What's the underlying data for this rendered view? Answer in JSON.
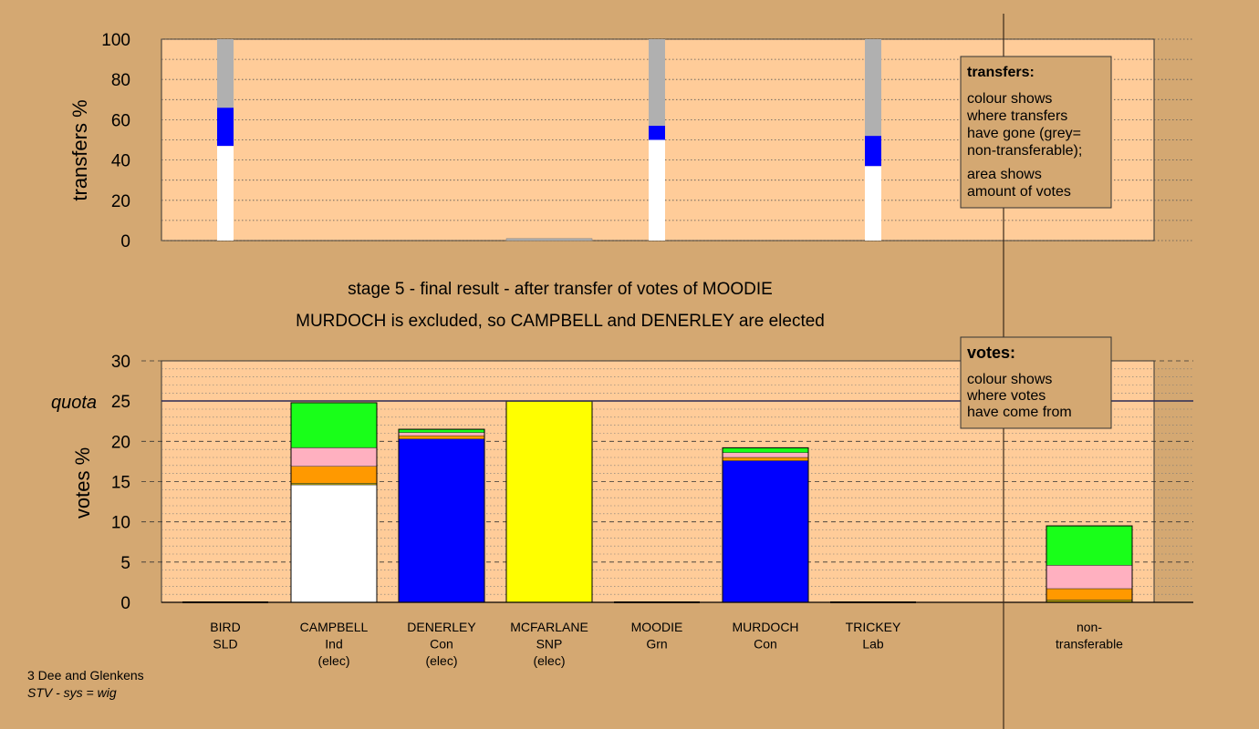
{
  "colors": {
    "background": "#d4a872",
    "plot_bg": "#ffcc99",
    "white": "#ffffff",
    "blue": "#0000ff",
    "yellow": "#ffff00",
    "green": "#19ff19",
    "pink": "#ffb0c0",
    "orange": "#ff9900",
    "olive": "#b5a000",
    "grey": "#b0b0b0"
  },
  "stage_title": "stage 5 - final result - after transfer of votes of MOODIE",
  "stage_subtitle": "MURDOCH is excluded, so CAMPBELL and DENERLEY are elected",
  "footer": {
    "line1": "3 Dee and Glenkens",
    "line2": "STV - sys = wig"
  },
  "transfers_legend": {
    "title": "transfers:",
    "lines": [
      "colour shows",
      "where transfers",
      "have gone (grey=",
      "non-transferable);",
      "area shows",
      "amount of votes"
    ]
  },
  "votes_legend": {
    "title": "votes:",
    "lines": [
      "colour shows",
      "where votes",
      "have come from"
    ]
  },
  "chart_data": [
    {
      "type": "bar",
      "name": "transfers",
      "ylabel": "transfers %",
      "ylim": [
        0,
        100
      ],
      "yticks": [
        0,
        20,
        40,
        60,
        80,
        100
      ],
      "grid": "dotted",
      "categories": [
        "BIRD",
        "CAMPBELL",
        "DENERLEY",
        "MCFARLANE",
        "MOODIE",
        "MURDOCH",
        "TRICKEY"
      ],
      "bars": [
        {
          "category": "BIRD",
          "segments": [
            {
              "color": "white",
              "value": 47
            },
            {
              "color": "blue",
              "value": 19
            },
            {
              "color": "grey",
              "value": 34
            }
          ]
        },
        {
          "category": "MCFARLANE",
          "segments": [
            {
              "color": "grey",
              "value": 1
            }
          ]
        },
        {
          "category": "MOODIE",
          "segments": [
            {
              "color": "white",
              "value": 50
            },
            {
              "color": "blue",
              "value": 7
            },
            {
              "color": "grey",
              "value": 43
            }
          ]
        },
        {
          "category": "TRICKEY",
          "segments": [
            {
              "color": "white",
              "value": 37
            },
            {
              "color": "blue",
              "value": 15
            },
            {
              "color": "grey",
              "value": 48
            }
          ]
        }
      ]
    },
    {
      "type": "bar",
      "name": "votes",
      "ylabel": "votes %",
      "ylim": [
        0,
        30
      ],
      "yticks": [
        0,
        5,
        10,
        15,
        20,
        25,
        30
      ],
      "grid": "dashed",
      "quota": 25,
      "quota_label": "quota",
      "categories": [
        "BIRD",
        "CAMPBELL",
        "DENERLEY",
        "MCFARLANE",
        "MOODIE",
        "MURDOCH",
        "TRICKEY",
        "non-transferable"
      ],
      "tick_labels": [
        [
          "BIRD",
          "SLD"
        ],
        [
          "CAMPBELL",
          "Ind",
          "(elec)"
        ],
        [
          "DENERLEY",
          "Con",
          "(elec)"
        ],
        [
          "MCFARLANE",
          "SNP",
          "(elec)"
        ],
        [
          "MOODIE",
          "Grn"
        ],
        [
          "MURDOCH",
          "Con"
        ],
        [
          "TRICKEY",
          "Lab"
        ],
        [
          "non-",
          "transferable"
        ]
      ],
      "bars": [
        {
          "category": "BIRD",
          "segments": []
        },
        {
          "category": "CAMPBELL",
          "segments": [
            {
              "color": "white",
              "value": 14.6
            },
            {
              "color": "olive",
              "value": 0.2
            },
            {
              "color": "orange",
              "value": 2.1
            },
            {
              "color": "pink",
              "value": 2.3
            },
            {
              "color": "green",
              "value": 5.6
            }
          ]
        },
        {
          "category": "DENERLEY",
          "segments": [
            {
              "color": "blue",
              "value": 20.3
            },
            {
              "color": "orange",
              "value": 0.4
            },
            {
              "color": "pink",
              "value": 0.4
            },
            {
              "color": "green",
              "value": 0.4
            }
          ]
        },
        {
          "category": "MCFARLANE",
          "segments": [
            {
              "color": "yellow",
              "value": 25
            }
          ]
        },
        {
          "category": "MOODIE",
          "segments": []
        },
        {
          "category": "MURDOCH",
          "segments": [
            {
              "color": "blue",
              "value": 17.6
            },
            {
              "color": "orange",
              "value": 0.4
            },
            {
              "color": "pink",
              "value": 0.6
            },
            {
              "color": "green",
              "value": 0.6
            }
          ]
        },
        {
          "category": "TRICKEY",
          "segments": []
        },
        {
          "category": "non-transferable",
          "segments": [
            {
              "color": "olive",
              "value": 0.3
            },
            {
              "color": "orange",
              "value": 1.4
            },
            {
              "color": "pink",
              "value": 2.9
            },
            {
              "color": "green",
              "value": 4.9
            }
          ]
        }
      ]
    }
  ]
}
